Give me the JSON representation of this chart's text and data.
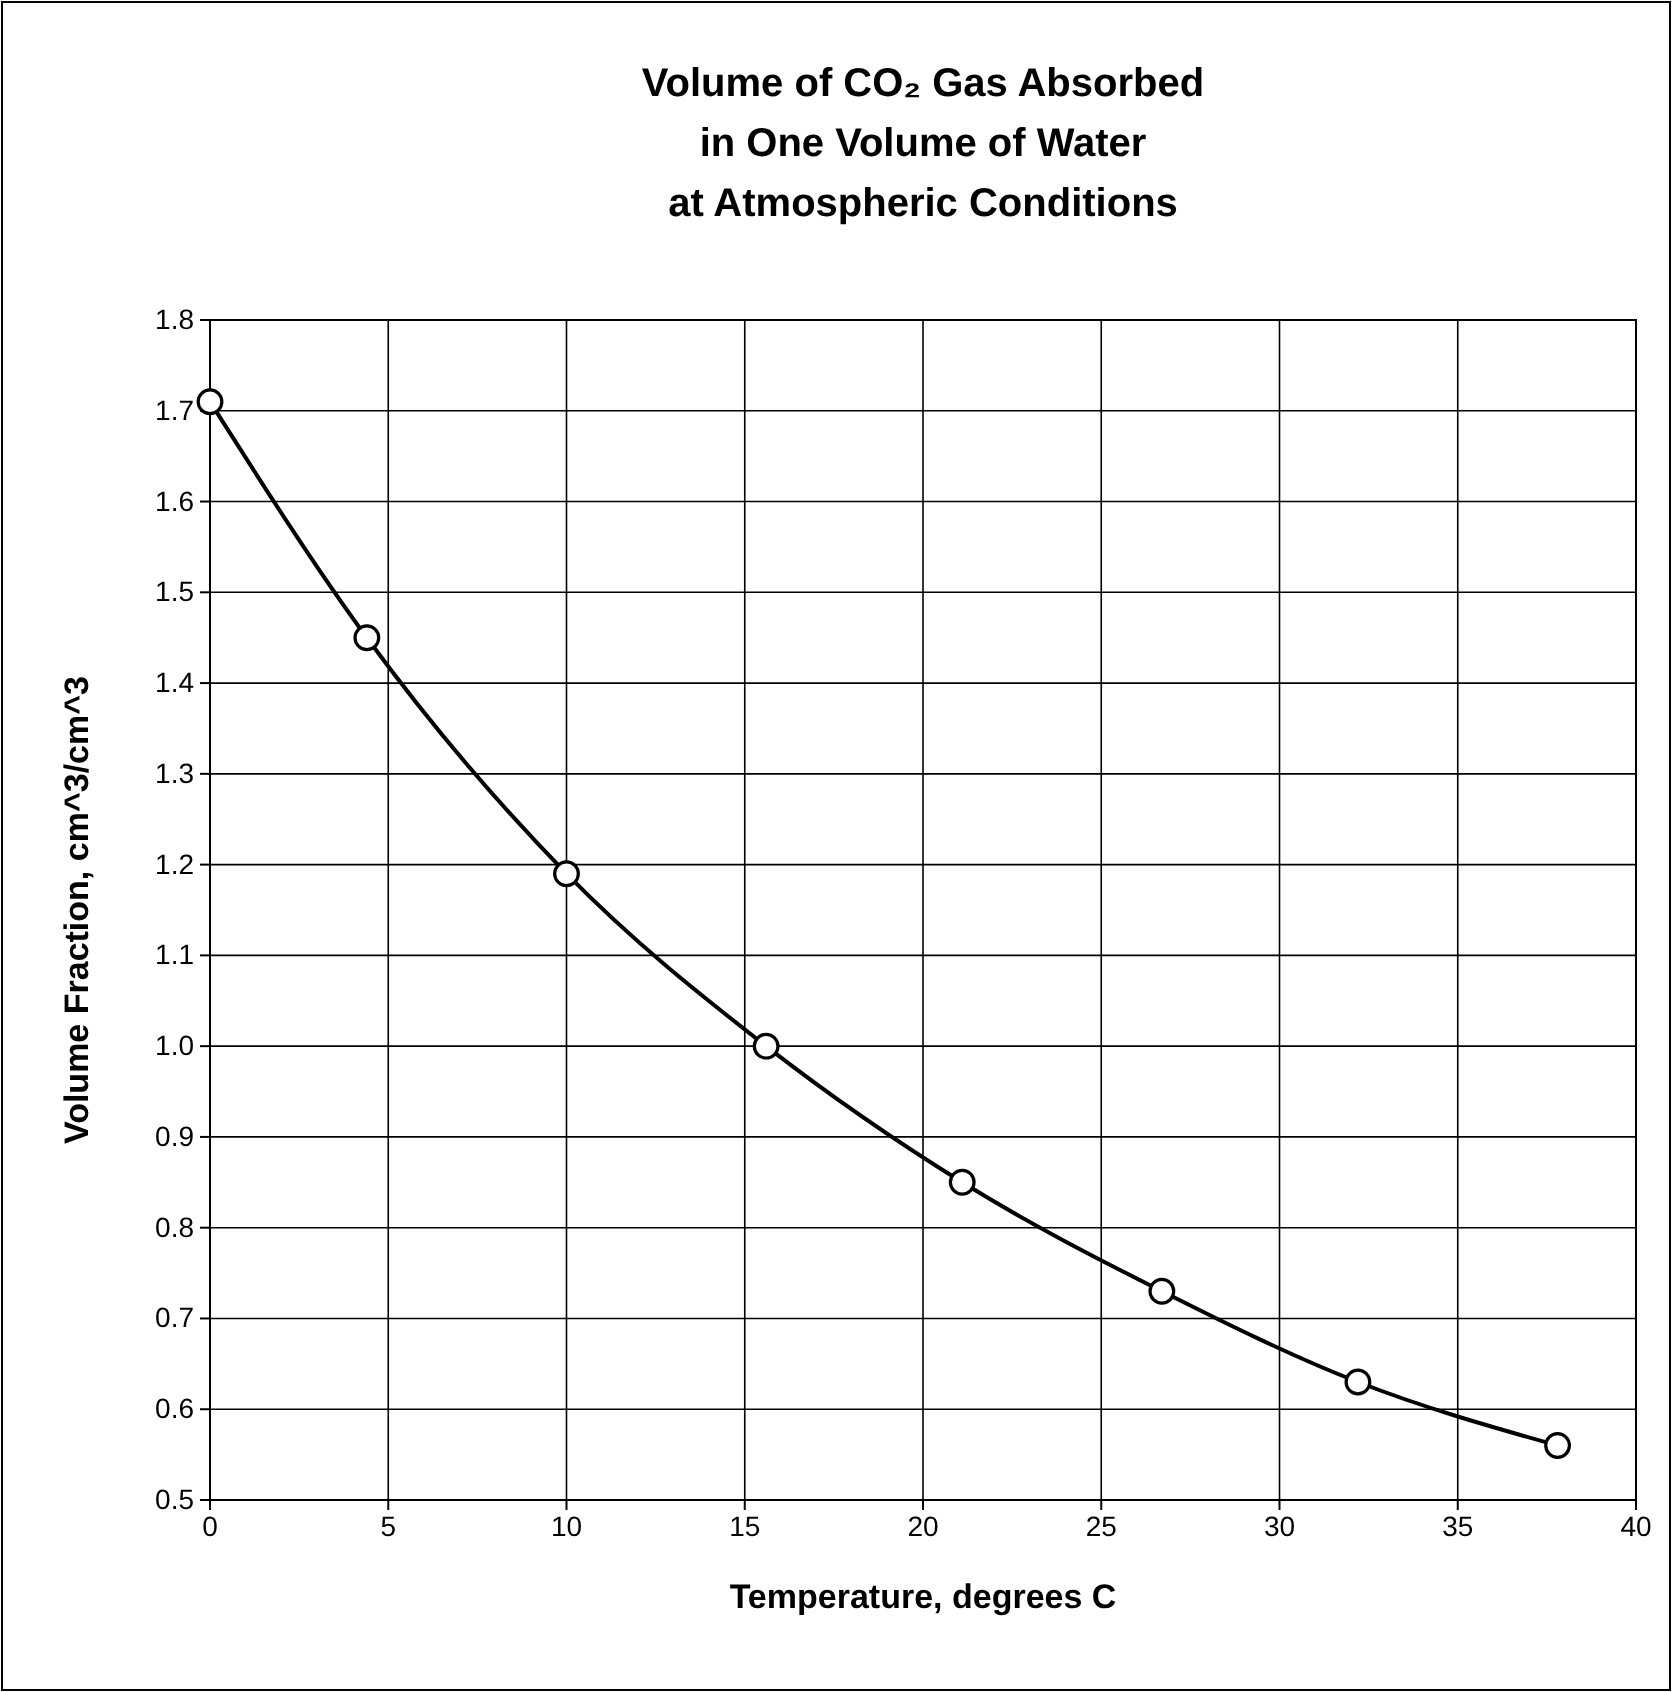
{
  "chart_data": {
    "type": "line",
    "title": "Volume of CO₂ Gas Absorbed\nin One Volume of Water\nat Atmospheric Conditions",
    "xlabel": "Temperature, degrees C",
    "ylabel": "Volume Fraction, cm^3/cm^3",
    "x": [
      0,
      4.4,
      10,
      15.6,
      21.1,
      26.7,
      32.2,
      37.8
    ],
    "series": [
      {
        "color": "#000000",
        "values": [
          1.71,
          1.45,
          1.19,
          1.0,
          0.85,
          0.73,
          0.63,
          0.56
        ]
      }
    ],
    "xlim": [
      0,
      40
    ],
    "xticks": [
      0,
      5,
      10,
      15,
      20,
      25,
      30,
      35,
      40
    ],
    "ylim": [
      0.5,
      1.8
    ],
    "yticks": [
      {
        "value": 0.5,
        "label": "0.5"
      },
      {
        "value": 0.6,
        "label": "0.6"
      },
      {
        "value": 0.7,
        "label": "0.7"
      },
      {
        "value": 0.8,
        "label": "0.8"
      },
      {
        "value": 0.9,
        "label": "0.9"
      },
      {
        "value": 1.0,
        "label": "1.0"
      },
      {
        "value": 1.1,
        "label": "1.1"
      },
      {
        "value": 1.2,
        "label": "1.2"
      },
      {
        "value": 1.3,
        "label": "1.3"
      },
      {
        "value": 1.4,
        "label": "1.4"
      },
      {
        "value": 1.5,
        "label": "1.5"
      },
      {
        "value": 1.6,
        "label": "1.6"
      },
      {
        "value": 1.7,
        "label": "1.7"
      },
      {
        "value": 1.8,
        "label": "1.8"
      }
    ],
    "grid": true,
    "marker": "circle",
    "line_style": "solid"
  }
}
